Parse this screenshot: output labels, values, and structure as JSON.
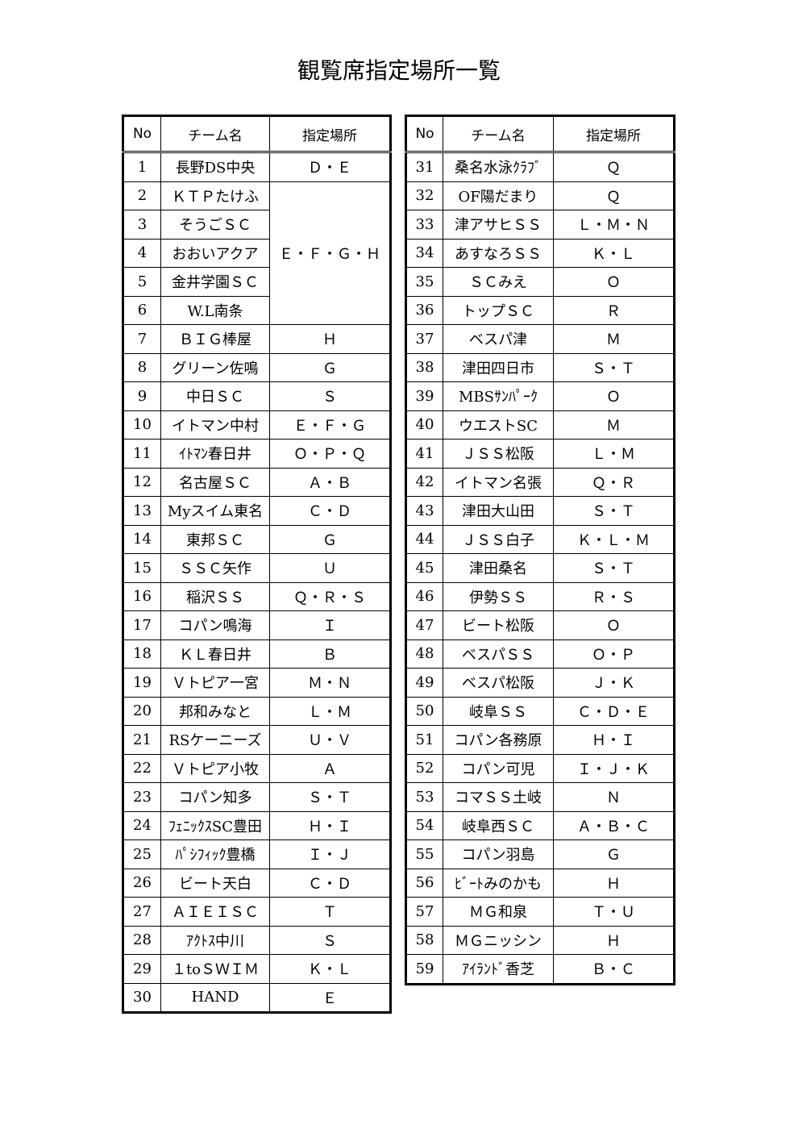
{
  "title": "観覧席指定場所一覧",
  "tables": [
    {
      "header": [
        "No",
        "チーム名",
        "指定場所"
      ],
      "rows": [
        [
          "1",
          "長野DS中央",
          "Ｄ・Ｅ"
        ],
        [
          "2",
          "ＫＴＰたけふ",
          "Ｅ・Ｆ・Ｇ・Ｈ"
        ],
        [
          "3",
          "そうごＳＣ"
        ],
        [
          "4",
          "おおいアクア"
        ],
        [
          "5",
          "金井学園ＳＣ"
        ],
        [
          "6",
          "W.L南条"
        ],
        [
          "7",
          "ＢＩＧ棒屋",
          "Ｈ"
        ],
        [
          "8",
          "グリーン佐鳴",
          "Ｇ"
        ],
        [
          "9",
          "中日ＳＣ",
          "Ｓ"
        ],
        [
          "10",
          "イトマン中村",
          "Ｅ・Ｆ・Ｇ"
        ],
        [
          "11",
          "ｲﾄﾏﾝ春日井",
          "Ｏ・Ｐ・Ｑ"
        ],
        [
          "12",
          "名古屋ＳＣ",
          "Ａ・Ｂ"
        ],
        [
          "13",
          "Myスイム東名",
          "Ｃ・Ｄ"
        ],
        [
          "14",
          "東邦ＳＣ",
          "Ｇ"
        ],
        [
          "15",
          "ＳＳＣ矢作",
          "Ｕ"
        ],
        [
          "16",
          "稲沢ＳＳ",
          "Ｑ・Ｒ・Ｓ"
        ],
        [
          "17",
          "コパン鳴海",
          "Ｉ"
        ],
        [
          "18",
          "ＫＬ春日井",
          "Ｂ"
        ],
        [
          "19",
          "Ｖトピア一宮",
          "Ｍ・Ｎ"
        ],
        [
          "20",
          "邦和みなと",
          "Ｌ・Ｍ"
        ],
        [
          "21",
          "RSケーニーズ",
          "Ｕ・Ｖ"
        ],
        [
          "22",
          "Ｖトピア小牧",
          "Ａ"
        ],
        [
          "23",
          "コパン知多",
          "Ｓ・Ｔ"
        ],
        [
          "24",
          "ﾌｪﾆｯｸｽSC豊田",
          "Ｈ・Ｉ"
        ],
        [
          "25",
          "ﾊﾟｼﾌｨｯｸ豊橋",
          "Ｉ・Ｊ"
        ],
        [
          "26",
          "ビート天白",
          "Ｃ・Ｄ"
        ],
        [
          "27",
          "ＡＩＥＩＳＣ",
          "Ｔ"
        ],
        [
          "28",
          "ｱｸﾄｽ中川",
          "Ｓ"
        ],
        [
          "29",
          "１toＳＷＩＭ",
          "Ｋ・Ｌ"
        ],
        [
          "30",
          "HAND",
          "Ｅ"
        ]
      ]
    },
    {
      "header": [
        "No",
        "チーム名",
        "指定場所"
      ],
      "rows": [
        [
          "31",
          "桑名水泳ｸﾗﾌﾞ",
          "Ｑ"
        ],
        [
          "32",
          "OF陽だまり",
          "Ｑ"
        ],
        [
          "33",
          "津アサヒＳＳ",
          "Ｌ・Ｍ・Ｎ"
        ],
        [
          "34",
          "あすなろＳＳ",
          "Ｋ・Ｌ"
        ],
        [
          "35",
          "ＳＣみえ",
          "Ｏ"
        ],
        [
          "36",
          "トップＳＣ",
          "Ｒ"
        ],
        [
          "37",
          "ベスパ津",
          "Ｍ"
        ],
        [
          "38",
          "津田四日市",
          "Ｓ・Ｔ"
        ],
        [
          "39",
          "MBSｻﾝﾊﾟｰｸ",
          "Ｏ"
        ],
        [
          "40",
          "ウエストSC",
          "Ｍ"
        ],
        [
          "41",
          "ＪＳＳ松阪",
          "Ｌ・Ｍ"
        ],
        [
          "42",
          "イトマン名張",
          "Ｑ・Ｒ"
        ],
        [
          "43",
          "津田大山田",
          "Ｓ・Ｔ"
        ],
        [
          "44",
          "ＪＳＳ白子",
          "Ｋ・Ｌ・Ｍ"
        ],
        [
          "45",
          "津田桑名",
          "Ｓ・Ｔ"
        ],
        [
          "46",
          "伊勢ＳＳ",
          "Ｒ・Ｓ"
        ],
        [
          "47",
          "ビート松阪",
          "Ｏ"
        ],
        [
          "48",
          "ベスパＳＳ",
          "Ｏ・Ｐ"
        ],
        [
          "49",
          "ベスパ松阪",
          "Ｊ・Ｋ"
        ],
        [
          "50",
          "岐阜ＳＳ",
          "Ｃ・Ｄ・Ｅ"
        ],
        [
          "51",
          "コパン各務原",
          "Ｈ・Ｉ"
        ],
        [
          "52",
          "コパン可児",
          "Ｉ・Ｊ・Ｋ"
        ],
        [
          "53",
          "コマＳＳ土岐",
          "Ｎ"
        ],
        [
          "54",
          "岐阜西ＳＣ",
          "Ａ・Ｂ・Ｃ"
        ],
        [
          "55",
          "コパン羽島",
          "Ｇ"
        ],
        [
          "56",
          "ﾋﾞｰﾄみのかも",
          "Ｈ"
        ],
        [
          "57",
          "ＭＧ和泉",
          "Ｔ・Ｕ"
        ],
        [
          "58",
          "ＭＧニッシン",
          "Ｈ"
        ],
        [
          "59",
          "ｱｲﾗﾝﾄﾞ香芝",
          "Ｂ・Ｃ"
        ]
      ]
    }
  ]
}
